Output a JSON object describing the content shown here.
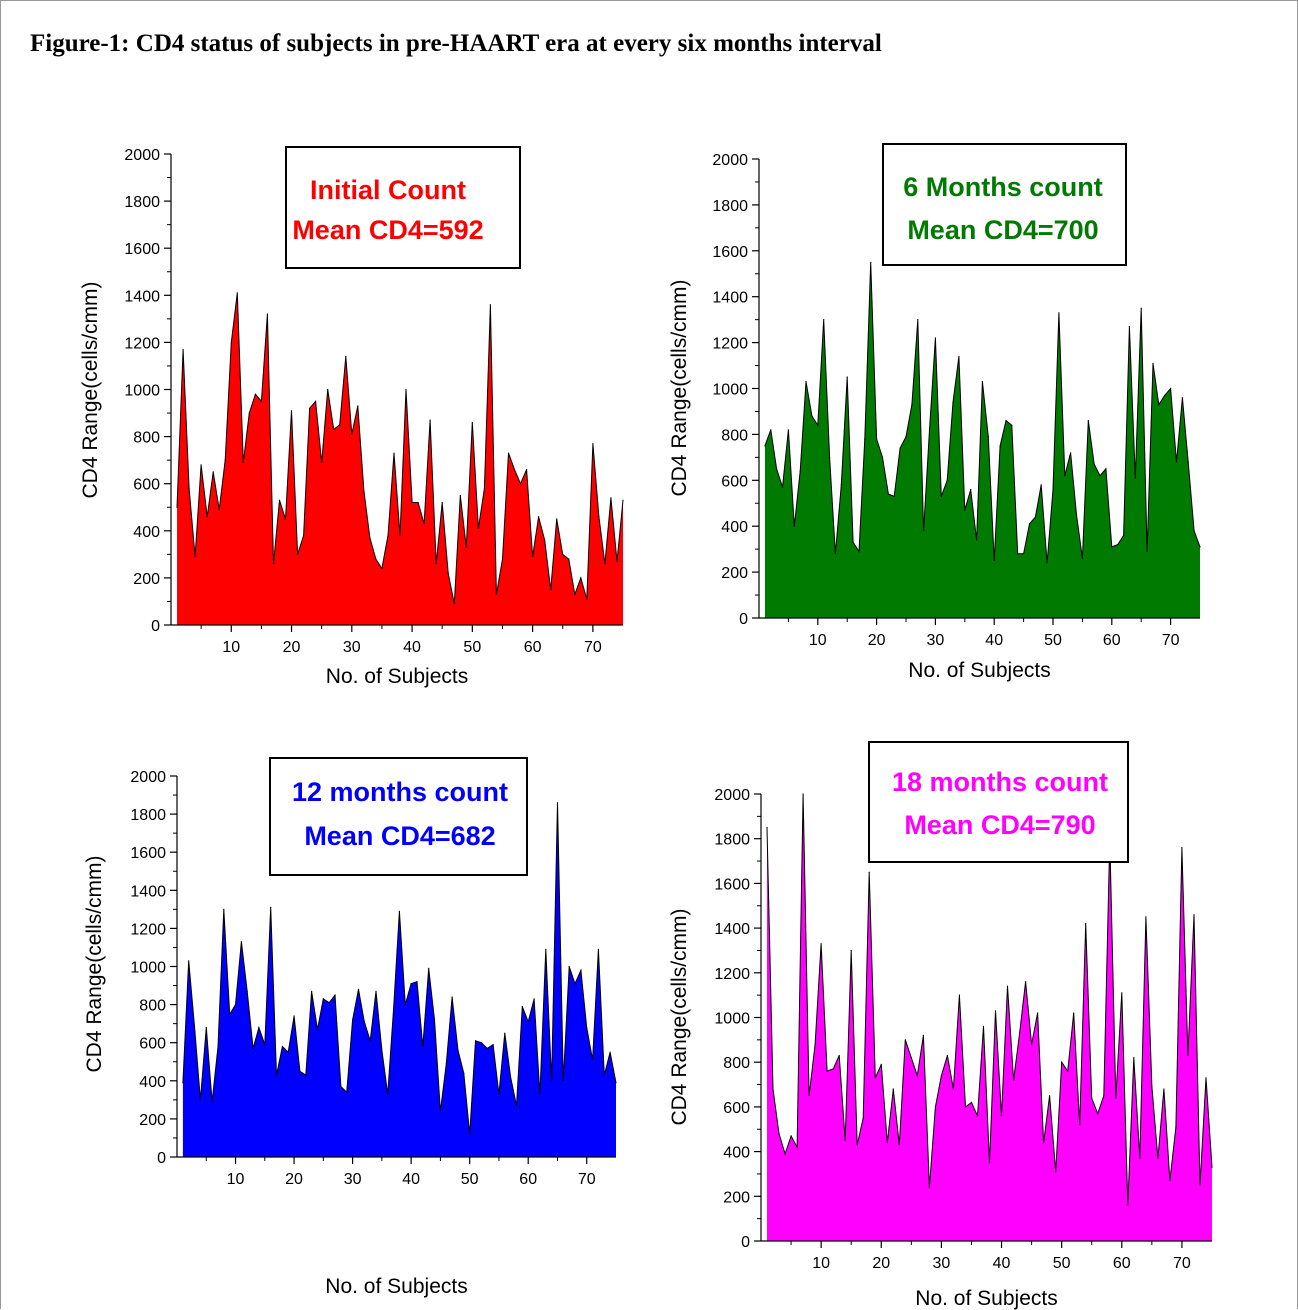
{
  "figure_title": "Figure-1: CD4 status of subjects in pre-HAART era at every six months interval",
  "chart_data": [
    {
      "type": "area",
      "name": "initial",
      "color": "#ff0000",
      "annotation": [
        "Initial Count",
        "Mean CD4=592"
      ],
      "xlabel": "No. of Subjects",
      "ylabel": "CD4 Range(cells/cmm)",
      "xlim": [
        0,
        75
      ],
      "ylim": [
        0,
        2000
      ],
      "xticks": [
        10,
        20,
        30,
        40,
        50,
        60,
        70
      ],
      "yticks": [
        0,
        200,
        400,
        600,
        800,
        1000,
        1200,
        1400,
        1600,
        1800,
        2000
      ],
      "x": [
        1,
        2,
        3,
        4,
        5,
        6,
        7,
        8,
        9,
        10,
        11,
        12,
        13,
        14,
        15,
        16,
        17,
        18,
        19,
        20,
        21,
        22,
        23,
        24,
        25,
        26,
        27,
        28,
        29,
        30,
        31,
        32,
        33,
        34,
        35,
        36,
        37,
        38,
        39,
        40,
        41,
        42,
        43,
        44,
        45,
        46,
        47,
        48,
        49,
        50,
        51,
        52,
        53,
        54,
        55,
        56,
        57,
        58,
        59,
        60,
        61,
        62,
        63,
        64,
        65,
        66,
        67,
        68,
        69,
        70,
        71,
        72,
        73,
        74,
        75
      ],
      "y": [
        500,
        1170,
        580,
        290,
        680,
        460,
        650,
        490,
        700,
        1200,
        1410,
        690,
        900,
        980,
        950,
        1320,
        260,
        530,
        450,
        910,
        300,
        380,
        920,
        950,
        690,
        1000,
        830,
        850,
        1140,
        810,
        930,
        570,
        370,
        280,
        240,
        380,
        730,
        380,
        1000,
        520,
        520,
        430,
        870,
        260,
        520,
        220,
        90,
        550,
        330,
        860,
        410,
        580,
        1360,
        130,
        280,
        730,
        660,
        600,
        660,
        290,
        460,
        360,
        150,
        450,
        300,
        280,
        130,
        200,
        110,
        770,
        460,
        260,
        540,
        270,
        530
      ]
    },
    {
      "type": "area",
      "name": "6-months",
      "color": "#007a00",
      "annotation": [
        "6 Months count",
        "Mean CD4=700"
      ],
      "xlabel": "No. of Subjects",
      "ylabel": "CD4 Range(cells/cmm)",
      "xlim": [
        0,
        75
      ],
      "ylim": [
        0,
        2000
      ],
      "xticks": [
        10,
        20,
        30,
        40,
        50,
        60,
        70
      ],
      "yticks": [
        0,
        200,
        400,
        600,
        800,
        1000,
        1200,
        1400,
        1600,
        1800,
        2000
      ],
      "x": [
        1,
        2,
        3,
        4,
        5,
        6,
        7,
        8,
        9,
        10,
        11,
        12,
        13,
        14,
        15,
        16,
        17,
        18,
        19,
        20,
        21,
        22,
        23,
        24,
        25,
        26,
        27,
        28,
        29,
        30,
        31,
        32,
        33,
        34,
        35,
        36,
        37,
        38,
        39,
        40,
        41,
        42,
        43,
        44,
        45,
        46,
        47,
        48,
        49,
        50,
        51,
        52,
        53,
        54,
        55,
        56,
        57,
        58,
        59,
        60,
        61,
        62,
        63,
        64,
        65,
        66,
        67,
        68,
        69,
        70,
        71,
        72,
        73,
        74,
        75
      ],
      "y": [
        750,
        820,
        650,
        570,
        820,
        400,
        640,
        1030,
        880,
        840,
        1300,
        700,
        280,
        580,
        1050,
        330,
        290,
        780,
        1550,
        780,
        700,
        540,
        530,
        740,
        790,
        930,
        1300,
        380,
        820,
        1220,
        530,
        600,
        940,
        1140,
        470,
        560,
        340,
        1030,
        790,
        250,
        750,
        860,
        840,
        280,
        280,
        410,
        440,
        580,
        240,
        560,
        1330,
        620,
        720,
        450,
        260,
        860,
        670,
        620,
        650,
        310,
        320,
        360,
        1270,
        610,
        1350,
        290,
        1110,
        930,
        970,
        1000,
        680,
        960,
        680,
        380,
        310
      ]
    },
    {
      "type": "area",
      "name": "12-months",
      "color": "#0000ff",
      "annotation": [
        "12 months count",
        "Mean CD4=682"
      ],
      "xlabel": "No. of Subjects",
      "ylabel": "CD4 Range(cells/cmm)",
      "xlim": [
        0,
        75
      ],
      "ylim": [
        0,
        2000
      ],
      "xticks": [
        10,
        20,
        30,
        40,
        50,
        60,
        70
      ],
      "yticks": [
        0,
        200,
        400,
        600,
        800,
        1000,
        1200,
        1400,
        1600,
        1800,
        2000
      ],
      "x": [
        1,
        2,
        3,
        4,
        5,
        6,
        7,
        8,
        9,
        10,
        11,
        12,
        13,
        14,
        15,
        16,
        17,
        18,
        19,
        20,
        21,
        22,
        23,
        24,
        25,
        26,
        27,
        28,
        29,
        30,
        31,
        32,
        33,
        34,
        35,
        36,
        37,
        38,
        39,
        40,
        41,
        42,
        43,
        44,
        45,
        46,
        47,
        48,
        49,
        50,
        51,
        52,
        53,
        54,
        55,
        56,
        57,
        58,
        59,
        60,
        61,
        62,
        63,
        64,
        65,
        66,
        67,
        68,
        69,
        70,
        71,
        72,
        73,
        74,
        75
      ],
      "y": [
        390,
        1030,
        680,
        300,
        680,
        290,
        580,
        1300,
        750,
        800,
        1130,
        870,
        570,
        680,
        590,
        1310,
        430,
        580,
        550,
        740,
        450,
        430,
        870,
        670,
        830,
        810,
        850,
        370,
        340,
        720,
        880,
        710,
        610,
        870,
        560,
        330,
        780,
        1290,
        800,
        910,
        920,
        580,
        990,
        720,
        240,
        490,
        840,
        560,
        440,
        120,
        610,
        600,
        570,
        590,
        330,
        650,
        420,
        270,
        790,
        710,
        830,
        330,
        1090,
        400,
        1860,
        400,
        1000,
        910,
        980,
        680,
        510,
        1090,
        430,
        550,
        390
      ]
    },
    {
      "type": "area",
      "name": "18-months",
      "color": "#ff00ff",
      "annotation": [
        "18 months count",
        "Mean CD4=790"
      ],
      "xlabel": "No. of Subjects",
      "ylabel": "CD4 Range(cells/cmm)",
      "xlim": [
        0,
        75
      ],
      "ylim": [
        0,
        2000
      ],
      "xticks": [
        10,
        20,
        30,
        40,
        50,
        60,
        70
      ],
      "yticks": [
        0,
        200,
        400,
        600,
        800,
        1000,
        1200,
        1400,
        1600,
        1800,
        2000
      ],
      "x": [
        1,
        2,
        3,
        4,
        5,
        6,
        7,
        8,
        9,
        10,
        11,
        12,
        13,
        14,
        15,
        16,
        17,
        18,
        19,
        20,
        21,
        22,
        23,
        24,
        25,
        26,
        27,
        28,
        29,
        30,
        31,
        32,
        33,
        34,
        35,
        36,
        37,
        38,
        39,
        40,
        41,
        42,
        43,
        44,
        45,
        46,
        47,
        48,
        49,
        50,
        51,
        52,
        53,
        54,
        55,
        56,
        57,
        58,
        59,
        60,
        61,
        62,
        63,
        64,
        65,
        66,
        67,
        68,
        69,
        70,
        71,
        72,
        73,
        74,
        75
      ],
      "y": [
        1850,
        680,
        480,
        390,
        470,
        420,
        2000,
        650,
        880,
        1330,
        760,
        770,
        830,
        450,
        1300,
        430,
        550,
        1650,
        730,
        790,
        440,
        680,
        430,
        900,
        820,
        740,
        920,
        240,
        600,
        740,
        830,
        680,
        1100,
        600,
        620,
        560,
        960,
        350,
        1030,
        560,
        1140,
        720,
        930,
        1160,
        880,
        1020,
        440,
        650,
        310,
        800,
        760,
        1020,
        520,
        1420,
        640,
        570,
        650,
        1800,
        640,
        1110,
        160,
        820,
        370,
        1450,
        690,
        370,
        680,
        270,
        510,
        1760,
        830,
        1460,
        250,
        730,
        330
      ]
    }
  ]
}
